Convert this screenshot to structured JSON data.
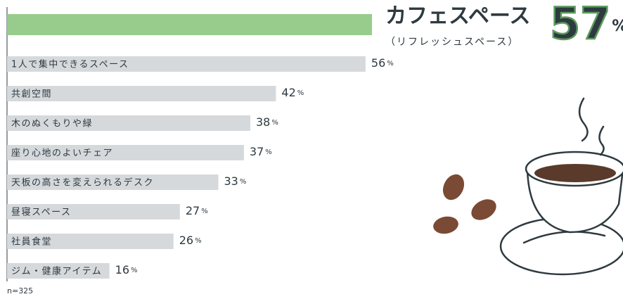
{
  "chart_data": {
    "type": "bar",
    "orientation": "horizontal",
    "categories": [
      "カフェスペース",
      "1人で集中できるスペース",
      "共創空間",
      "木のぬくもりや緑",
      "座り心地のよいチェア",
      "天板の高さを変えられるデスク",
      "昼寝スペース",
      "社員食堂",
      "ジム・健康アイテム"
    ],
    "highlight_note": "（リフレッシュスペース）",
    "values": [
      57,
      56,
      42,
      38,
      37,
      33,
      27,
      26,
      16
    ],
    "value_labels": [
      "57%",
      "56%",
      "42%",
      "38%",
      "37%",
      "33%",
      "27%",
      "26%",
      "16%"
    ],
    "highlight_color": "#98cc8c",
    "color": "#d6d9dc",
    "footnote": "n=325"
  }
}
